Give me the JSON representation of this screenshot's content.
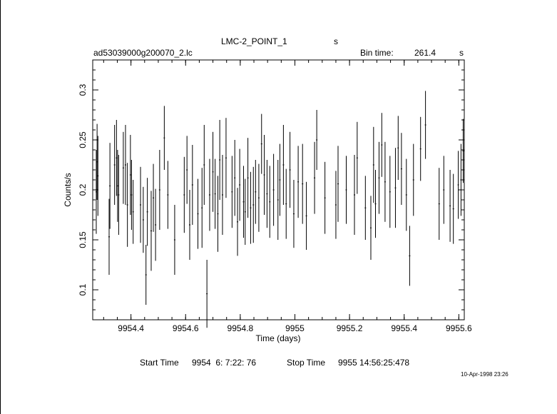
{
  "header": {
    "object": "LMC-2_POINT_1",
    "object_unit": "s",
    "filename": "ad53039000g200070_2.lc",
    "bin_label": "Bin time:",
    "bin_value": "261.4",
    "bin_unit": "s"
  },
  "footer": {
    "start_label": "Start Time",
    "start_value": "9954  6: 7:22: 76",
    "stop_label": "Stop Time",
    "stop_value": "9955 14:56:25:478",
    "timestamp": "10-Apr-1998 23:26"
  },
  "chart_data": {
    "type": "scatter",
    "xlabel": "Time (days)",
    "ylabel": "Counts/s",
    "xlim": [
      9954.26,
      9955.62
    ],
    "ylim": [
      0.07,
      0.33
    ],
    "xticks": [
      9954.4,
      9954.6,
      9954.8,
      9955,
      9955.2,
      9955.4,
      9955.6
    ],
    "xtick_labels": [
      "9954.4",
      "9954.6",
      "9954.8",
      "9955",
      "9955.2",
      "9955.4",
      "9955.6"
    ],
    "yticks": [
      0.1,
      0.15,
      0.2,
      0.25,
      0.3
    ],
    "ytick_labels": [
      "0.1",
      "0.15",
      "0.2",
      "0.25",
      "0.3"
    ],
    "grid": false,
    "error_bars": true,
    "points": [
      [
        9954.273,
        0.198,
        0.042
      ],
      [
        9954.276,
        0.228,
        0.038
      ],
      [
        9954.279,
        0.214,
        0.04
      ],
      [
        9954.32,
        0.153,
        0.038
      ],
      [
        9954.323,
        0.204,
        0.043
      ],
      [
        9954.34,
        0.225,
        0.04
      ],
      [
        9954.347,
        0.232,
        0.038
      ],
      [
        9954.351,
        0.204,
        0.036
      ],
      [
        9954.355,
        0.195,
        0.04
      ],
      [
        9954.372,
        0.222,
        0.036
      ],
      [
        9954.38,
        0.225,
        0.04
      ],
      [
        9954.387,
        0.185,
        0.042
      ],
      [
        9954.398,
        0.215,
        0.04
      ],
      [
        9954.402,
        0.195,
        0.035
      ],
      [
        9954.408,
        0.178,
        0.032
      ],
      [
        9954.435,
        0.185,
        0.038
      ],
      [
        9954.445,
        0.17,
        0.033
      ],
      [
        9954.455,
        0.115,
        0.03
      ],
      [
        9954.46,
        0.178,
        0.034
      ],
      [
        9954.474,
        0.159,
        0.04
      ],
      [
        9954.482,
        0.192,
        0.034
      ],
      [
        9954.49,
        0.165,
        0.036
      ],
      [
        9954.505,
        0.2,
        0.04
      ],
      [
        9954.522,
        0.252,
        0.032
      ],
      [
        9954.535,
        0.195,
        0.034
      ],
      [
        9954.56,
        0.15,
        0.035
      ],
      [
        9954.595,
        0.195,
        0.038
      ],
      [
        9954.605,
        0.22,
        0.034
      ],
      [
        9954.615,
        0.165,
        0.035
      ],
      [
        9954.625,
        0.205,
        0.04
      ],
      [
        9954.645,
        0.176,
        0.035
      ],
      [
        9954.66,
        0.182,
        0.04
      ],
      [
        9954.668,
        0.225,
        0.04
      ],
      [
        9954.678,
        0.096,
        0.034
      ],
      [
        9954.688,
        0.195,
        0.036
      ],
      [
        9954.7,
        0.218,
        0.04
      ],
      [
        9954.708,
        0.196,
        0.035
      ],
      [
        9954.718,
        0.176,
        0.038
      ],
      [
        9954.725,
        0.23,
        0.04
      ],
      [
        9954.735,
        0.195,
        0.04
      ],
      [
        9954.748,
        0.232,
        0.04
      ],
      [
        9954.77,
        0.198,
        0.036
      ],
      [
        9954.78,
        0.212,
        0.038
      ],
      [
        9954.79,
        0.168,
        0.034
      ],
      [
        9954.798,
        0.205,
        0.036
      ],
      [
        9954.812,
        0.188,
        0.036
      ],
      [
        9954.818,
        0.178,
        0.033
      ],
      [
        9954.828,
        0.212,
        0.04
      ],
      [
        9954.838,
        0.182,
        0.036
      ],
      [
        9954.848,
        0.185,
        0.038
      ],
      [
        9954.856,
        0.198,
        0.032
      ],
      [
        9954.868,
        0.192,
        0.034
      ],
      [
        9954.878,
        0.246,
        0.03
      ],
      [
        9954.888,
        0.215,
        0.04
      ],
      [
        9954.898,
        0.196,
        0.034
      ],
      [
        9954.908,
        0.188,
        0.036
      ],
      [
        9954.922,
        0.2,
        0.036
      ],
      [
        9954.938,
        0.19,
        0.04
      ],
      [
        9954.945,
        0.21,
        0.036
      ],
      [
        9954.958,
        0.225,
        0.04
      ],
      [
        9954.968,
        0.186,
        0.035
      ],
      [
        9954.982,
        0.22,
        0.038
      ],
      [
        9954.996,
        0.176,
        0.034
      ],
      [
        9955.012,
        0.208,
        0.036
      ],
      [
        9955.028,
        0.206,
        0.04
      ],
      [
        9955.042,
        0.174,
        0.034
      ],
      [
        9955.072,
        0.212,
        0.036
      ],
      [
        9955.08,
        0.25,
        0.03
      ],
      [
        9955.11,
        0.192,
        0.036
      ],
      [
        9955.15,
        0.185,
        0.034
      ],
      [
        9955.158,
        0.206,
        0.038
      ],
      [
        9955.188,
        0.2,
        0.034
      ],
      [
        9955.218,
        0.195,
        0.04
      ],
      [
        9955.228,
        0.232,
        0.036
      ],
      [
        9955.258,
        0.182,
        0.032
      ],
      [
        9955.278,
        0.162,
        0.032
      ],
      [
        9955.288,
        0.225,
        0.038
      ],
      [
        9955.295,
        0.186,
        0.034
      ],
      [
        9955.308,
        0.212,
        0.036
      ],
      [
        9955.318,
        0.245,
        0.032
      ],
      [
        9955.33,
        0.208,
        0.04
      ],
      [
        9955.348,
        0.198,
        0.036
      ],
      [
        9955.368,
        0.202,
        0.04
      ],
      [
        9955.378,
        0.242,
        0.032
      ],
      [
        9955.39,
        0.221,
        0.036
      ],
      [
        9955.408,
        0.195,
        0.036
      ],
      [
        9955.42,
        0.134,
        0.03
      ],
      [
        9955.434,
        0.21,
        0.036
      ],
      [
        9955.46,
        0.241,
        0.032
      ],
      [
        9955.478,
        0.265,
        0.034
      ],
      [
        9955.528,
        0.186,
        0.036
      ],
      [
        9955.545,
        0.2,
        0.034
      ],
      [
        9955.568,
        0.184,
        0.036
      ],
      [
        9955.58,
        0.181,
        0.035
      ],
      [
        9955.598,
        0.205,
        0.034
      ],
      [
        9955.608,
        0.21,
        0.036
      ],
      [
        9955.616,
        0.239,
        0.032
      ]
    ]
  }
}
